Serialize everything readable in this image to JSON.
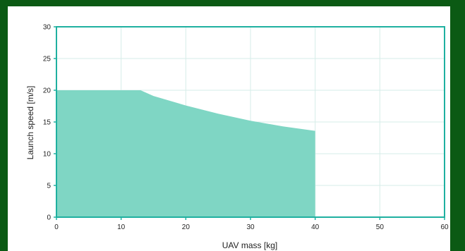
{
  "chart_data": {
    "type": "area",
    "xlabel": "UAV mass [kg]",
    "ylabel": "Launch speed [m/s]",
    "xlim": [
      0,
      60
    ],
    "ylim": [
      0,
      30
    ],
    "x_ticks": [
      "0",
      "10",
      "20",
      "30",
      "40",
      "50",
      "60"
    ],
    "y_ticks": [
      "0",
      "5",
      "10",
      "15",
      "20",
      "25",
      "30"
    ],
    "grid": true,
    "series": [
      {
        "x": [
          0,
          13,
          15,
          20,
          25,
          30,
          35,
          40
        ],
        "y": [
          20,
          20,
          19.1,
          17.6,
          16.3,
          15.2,
          14.3,
          13.6
        ]
      }
    ],
    "colors": {
      "fill": "#7fd6c4",
      "axis": "#1fb0a0",
      "grid": "#d6ede8",
      "background": "#0b5a14",
      "panel": "#ffffff"
    }
  }
}
